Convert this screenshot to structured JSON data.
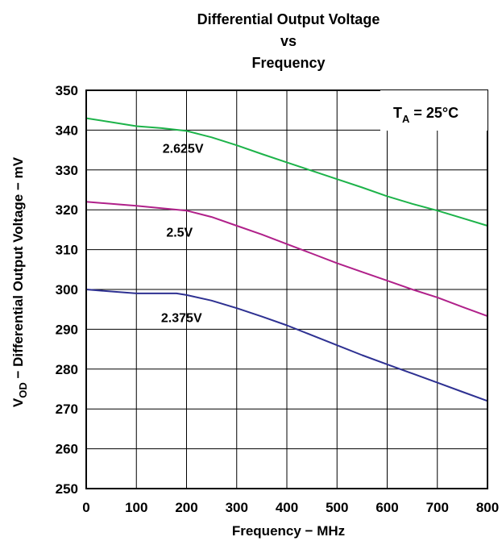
{
  "chart_data": {
    "type": "line",
    "title_lines": [
      "Differential Output Voltage",
      "vs",
      "Frequency"
    ],
    "xlabel": "Frequency − MHz",
    "ylabel_main": "V",
    "ylabel_sub": "OD",
    "ylabel_rest": " − Differential Output Voltage − mV",
    "xlim": [
      0,
      800
    ],
    "ylim": [
      250,
      350
    ],
    "xticks": [
      0,
      100,
      200,
      300,
      400,
      500,
      600,
      700,
      800
    ],
    "yticks": [
      250,
      260,
      270,
      280,
      290,
      300,
      310,
      320,
      330,
      340,
      350
    ],
    "grid": true,
    "annotation": {
      "main": "T",
      "sub": "A",
      "rest": " = 25°C"
    },
    "series": [
      {
        "name": "2.625V",
        "color": "#1db34a",
        "x": [
          0,
          50,
          100,
          150,
          200,
          250,
          300,
          350,
          400,
          450,
          500,
          550,
          600,
          650,
          700,
          750,
          800
        ],
        "y": [
          343,
          342,
          341,
          340.5,
          339.8,
          338.2,
          336.2,
          334,
          331.9,
          329.8,
          327.7,
          325.6,
          323.4,
          321.5,
          319.8,
          317.9,
          316
        ]
      },
      {
        "name": "2.5V",
        "color": "#b0218a",
        "x": [
          0,
          50,
          100,
          150,
          200,
          250,
          300,
          350,
          400,
          450,
          500,
          550,
          600,
          650,
          700,
          750,
          800
        ],
        "y": [
          322,
          321.5,
          321,
          320.4,
          319.8,
          318.2,
          316,
          313.8,
          311.4,
          309,
          306.6,
          304.4,
          302.2,
          300,
          298,
          295.6,
          293.3
        ]
      },
      {
        "name": "2.375V",
        "color": "#2e3192",
        "x": [
          0,
          50,
          100,
          150,
          180,
          200,
          250,
          300,
          350,
          400,
          450,
          500,
          550,
          600,
          650,
          700,
          750,
          800
        ],
        "y": [
          300,
          299.5,
          299,
          299,
          299,
          298.6,
          297.2,
          295.3,
          293.2,
          291,
          288.5,
          286,
          283.5,
          281.2,
          278.9,
          276.6,
          274.3,
          272
        ]
      }
    ]
  }
}
